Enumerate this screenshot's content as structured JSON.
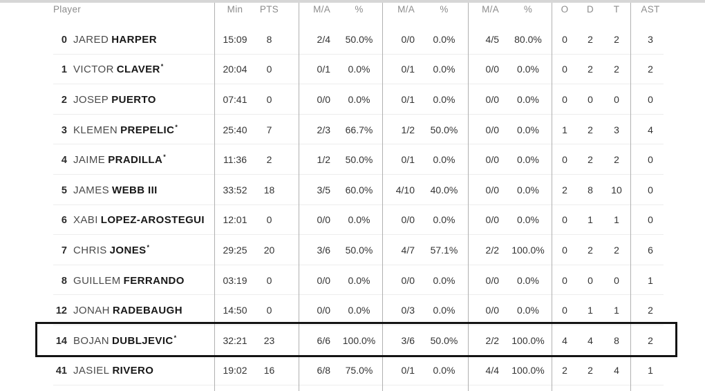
{
  "table": {
    "headers": {
      "player": "Player",
      "min": "Min",
      "pts": "PTS",
      "fg2_ma": "M/A",
      "fg2_pct": "%",
      "fg3_ma": "M/A",
      "fg3_pct": "%",
      "ft_ma": "M/A",
      "ft_pct": "%",
      "oreb": "O",
      "dreb": "D",
      "treb": "T",
      "ast": "AST"
    },
    "rows": [
      {
        "num": "0",
        "first": "JARED",
        "last": "HARPER",
        "star": "",
        "min": "15:09",
        "pts": "8",
        "fg2_ma": "2/4",
        "fg2_pct": "50.0%",
        "fg3_ma": "0/0",
        "fg3_pct": "0.0%",
        "ft_ma": "4/5",
        "ft_pct": "80.0%",
        "oreb": "0",
        "dreb": "2",
        "treb": "2",
        "ast": "3",
        "highlighted": false
      },
      {
        "num": "1",
        "first": "VICTOR",
        "last": "CLAVER",
        "star": "*",
        "min": "20:04",
        "pts": "0",
        "fg2_ma": "0/1",
        "fg2_pct": "0.0%",
        "fg3_ma": "0/1",
        "fg3_pct": "0.0%",
        "ft_ma": "0/0",
        "ft_pct": "0.0%",
        "oreb": "0",
        "dreb": "2",
        "treb": "2",
        "ast": "2",
        "highlighted": false
      },
      {
        "num": "2",
        "first": "JOSEP",
        "last": "PUERTO",
        "star": "",
        "min": "07:41",
        "pts": "0",
        "fg2_ma": "0/0",
        "fg2_pct": "0.0%",
        "fg3_ma": "0/1",
        "fg3_pct": "0.0%",
        "ft_ma": "0/0",
        "ft_pct": "0.0%",
        "oreb": "0",
        "dreb": "0",
        "treb": "0",
        "ast": "0",
        "highlighted": false
      },
      {
        "num": "3",
        "first": "KLEMEN",
        "last": "PREPELIC",
        "star": "*",
        "min": "25:40",
        "pts": "7",
        "fg2_ma": "2/3",
        "fg2_pct": "66.7%",
        "fg3_ma": "1/2",
        "fg3_pct": "50.0%",
        "ft_ma": "0/0",
        "ft_pct": "0.0%",
        "oreb": "1",
        "dreb": "2",
        "treb": "3",
        "ast": "4",
        "highlighted": false
      },
      {
        "num": "4",
        "first": "JAIME",
        "last": "PRADILLA",
        "star": "*",
        "min": "11:36",
        "pts": "2",
        "fg2_ma": "1/2",
        "fg2_pct": "50.0%",
        "fg3_ma": "0/1",
        "fg3_pct": "0.0%",
        "ft_ma": "0/0",
        "ft_pct": "0.0%",
        "oreb": "0",
        "dreb": "2",
        "treb": "2",
        "ast": "0",
        "highlighted": false
      },
      {
        "num": "5",
        "first": "JAMES",
        "last": "WEBB III",
        "star": "",
        "min": "33:52",
        "pts": "18",
        "fg2_ma": "3/5",
        "fg2_pct": "60.0%",
        "fg3_ma": "4/10",
        "fg3_pct": "40.0%",
        "ft_ma": "0/0",
        "ft_pct": "0.0%",
        "oreb": "2",
        "dreb": "8",
        "treb": "10",
        "ast": "0",
        "highlighted": false
      },
      {
        "num": "6",
        "first": "XABI",
        "last": "LOPEZ-AROSTEGUI",
        "star": "",
        "min": "12:01",
        "pts": "0",
        "fg2_ma": "0/0",
        "fg2_pct": "0.0%",
        "fg3_ma": "0/0",
        "fg3_pct": "0.0%",
        "ft_ma": "0/0",
        "ft_pct": "0.0%",
        "oreb": "0",
        "dreb": "1",
        "treb": "1",
        "ast": "0",
        "highlighted": false
      },
      {
        "num": "7",
        "first": "CHRIS",
        "last": "JONES",
        "star": "*",
        "min": "29:25",
        "pts": "20",
        "fg2_ma": "3/6",
        "fg2_pct": "50.0%",
        "fg3_ma": "4/7",
        "fg3_pct": "57.1%",
        "ft_ma": "2/2",
        "ft_pct": "100.0%",
        "oreb": "0",
        "dreb": "2",
        "treb": "2",
        "ast": "6",
        "highlighted": false
      },
      {
        "num": "8",
        "first": "GUILLEM",
        "last": "FERRANDO",
        "star": "",
        "min": "03:19",
        "pts": "0",
        "fg2_ma": "0/0",
        "fg2_pct": "0.0%",
        "fg3_ma": "0/0",
        "fg3_pct": "0.0%",
        "ft_ma": "0/0",
        "ft_pct": "0.0%",
        "oreb": "0",
        "dreb": "0",
        "treb": "0",
        "ast": "1",
        "highlighted": false
      },
      {
        "num": "12",
        "first": "JONAH",
        "last": "RADEBAUGH",
        "star": "",
        "min": "14:50",
        "pts": "0",
        "fg2_ma": "0/0",
        "fg2_pct": "0.0%",
        "fg3_ma": "0/3",
        "fg3_pct": "0.0%",
        "ft_ma": "0/0",
        "ft_pct": "0.0%",
        "oreb": "0",
        "dreb": "1",
        "treb": "1",
        "ast": "2",
        "highlighted": false
      },
      {
        "num": "14",
        "first": "BOJAN",
        "last": "DUBLJEVIC",
        "star": "*",
        "min": "32:21",
        "pts": "23",
        "fg2_ma": "6/6",
        "fg2_pct": "100.0%",
        "fg3_ma": "3/6",
        "fg3_pct": "50.0%",
        "ft_ma": "2/2",
        "ft_pct": "100.0%",
        "oreb": "4",
        "dreb": "4",
        "treb": "8",
        "ast": "2",
        "highlighted": true
      },
      {
        "num": "41",
        "first": "JASIEL",
        "last": "RIVERO",
        "star": "",
        "min": "19:02",
        "pts": "16",
        "fg2_ma": "6/8",
        "fg2_pct": "75.0%",
        "fg3_ma": "0/1",
        "fg3_pct": "0.0%",
        "ft_ma": "4/4",
        "ft_pct": "100.0%",
        "oreb": "2",
        "dreb": "2",
        "treb": "4",
        "ast": "1",
        "highlighted": false
      }
    ]
  },
  "colors": {
    "column_divider": "#b0b0b0",
    "row_divider": "#ededed",
    "top_strip": "#d6d6d6",
    "highlight_border": "#141414",
    "header_text": "#8c8c8c",
    "last_name_text": "#171717"
  }
}
